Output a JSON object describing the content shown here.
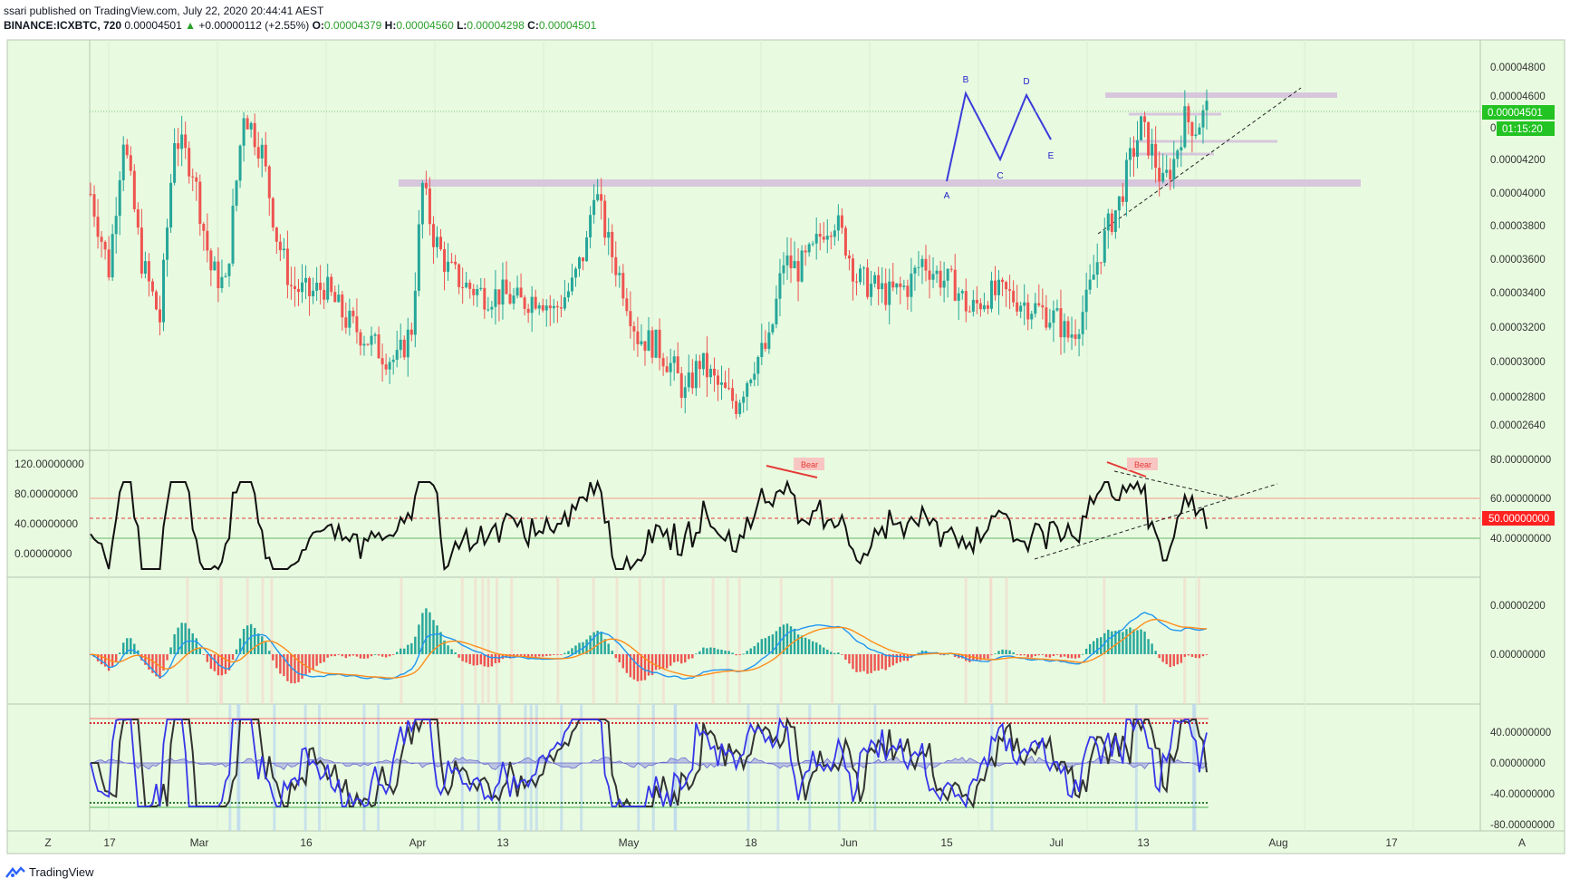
{
  "header": {
    "line1": "ssari published on TradingView.com, July 22, 2020 20:44:41 AEST",
    "symbol": "BINANCE:ICXBTC, 720",
    "last": "0.00004501",
    "change": "+0.00000112 (+2.55%)",
    "o_label": "O:",
    "o_value": "0.00004379",
    "h_label": "H:",
    "h_value": "0.00004560",
    "l_label": "L:",
    "l_value": "0.00004298",
    "c_label": "C:",
    "c_value": "0.00004501",
    "up_arrow": "▲"
  },
  "footer": {
    "brand": "TradingView"
  },
  "corners": {
    "left": "Z",
    "right": "A"
  },
  "colors": {
    "bg": "#e8fbe0",
    "up": "#26a69a",
    "down": "#ef5350",
    "band": "#d8c8dc",
    "pattern": "#3b3bdb"
  },
  "chart_data": {
    "type": "candlestick",
    "symbol": "BINANCE:ICXBTC",
    "interval": "720",
    "xaxis_ticks": [
      "17",
      "Mar",
      "16",
      "Apr",
      "13",
      "May",
      "18",
      "Jun",
      "15",
      "Jul",
      "13",
      "Aug",
      "17"
    ],
    "price_pane": {
      "y_ticks": [
        "0.00004800",
        "0.00004600",
        "0.00004400",
        "0.00004200",
        "0.00004000",
        "0.00003800",
        "0.00003600",
        "0.00003400",
        "0.00003200",
        "0.00003000",
        "0.00002800",
        "0.00002640"
      ],
      "y_tick_values": [
        4.8e-05,
        4.6e-05,
        4.4e-05,
        4.2e-05,
        4e-05,
        3.8e-05,
        3.6e-05,
        3.4e-05,
        3.2e-05,
        3e-05,
        2.8e-05,
        2.64e-05
      ],
      "last_price_label": "0.00004501",
      "countdown_label": "01:15:20",
      "hidden_tick": "0.",
      "path_points": [
        [
          0,
          4.0
        ],
        [
          5,
          3.55
        ],
        [
          9,
          4.35
        ],
        [
          14,
          3.6
        ],
        [
          19,
          3.25
        ],
        [
          23,
          4.35
        ],
        [
          28,
          4.15
        ],
        [
          33,
          3.55
        ],
        [
          37,
          3.45
        ],
        [
          42,
          4.5
        ],
        [
          47,
          4.25
        ],
        [
          51,
          3.75
        ],
        [
          55,
          3.45
        ],
        [
          60,
          3.4
        ],
        [
          64,
          3.45
        ],
        [
          70,
          3.25
        ],
        [
          75,
          3.15
        ],
        [
          80,
          3.05
        ],
        [
          84,
          3.0
        ],
        [
          88,
          3.2
        ],
        [
          91,
          4.05
        ],
        [
          94,
          3.75
        ],
        [
          98,
          3.55
        ],
        [
          103,
          3.45
        ],
        [
          108,
          3.4
        ],
        [
          113,
          3.4
        ],
        [
          118,
          3.35
        ],
        [
          123,
          3.4
        ],
        [
          127,
          3.3
        ],
        [
          132,
          3.45
        ],
        [
          136,
          3.7
        ],
        [
          138,
          4.05
        ],
        [
          142,
          3.7
        ],
        [
          146,
          3.45
        ],
        [
          150,
          3.15
        ],
        [
          155,
          3.1
        ],
        [
          160,
          2.95
        ],
        [
          163,
          2.8
        ],
        [
          167,
          3.0
        ],
        [
          172,
          2.85
        ],
        [
          177,
          2.75
        ],
        [
          182,
          3.0
        ],
        [
          186,
          3.1
        ],
        [
          190,
          3.6
        ],
        [
          194,
          3.55
        ],
        [
          198,
          3.65
        ],
        [
          201,
          3.8
        ],
        [
          204,
          3.85
        ],
        [
          207,
          3.7
        ],
        [
          210,
          3.5
        ],
        [
          214,
          3.45
        ],
        [
          219,
          3.4
        ],
        [
          224,
          3.45
        ],
        [
          228,
          3.6
        ],
        [
          233,
          3.5
        ],
        [
          237,
          3.45
        ],
        [
          241,
          3.3
        ],
        [
          246,
          3.4
        ],
        [
          251,
          3.4
        ],
        [
          256,
          3.35
        ],
        [
          261,
          3.3
        ],
        [
          265,
          3.25
        ],
        [
          268,
          3.15
        ],
        [
          270,
          3.2
        ],
        [
          273,
          3.35
        ],
        [
          276,
          3.6
        ],
        [
          279,
          3.8
        ],
        [
          282,
          3.95
        ],
        [
          285,
          4.2
        ],
        [
          288,
          4.4
        ],
        [
          291,
          4.25
        ],
        [
          294,
          4.05
        ],
        [
          297,
          4.2
        ],
        [
          300,
          4.45
        ],
        [
          303,
          4.4
        ],
        [
          306,
          4.5
        ]
      ],
      "horizontal_bands": [
        {
          "from": 4.05e-05,
          "to": 4.05e-05,
          "label": "support/resistance"
        },
        {
          "from": 4.6e-05,
          "to": 4.6e-05,
          "label": "top band"
        }
      ],
      "pattern_points": [
        {
          "label": "A",
          "price": 4.06e-05
        },
        {
          "label": "B",
          "price": 4.62e-05
        },
        {
          "label": "C",
          "price": 4.21e-05
        },
        {
          "label": "D",
          "price": 4.62e-05
        },
        {
          "label": "E",
          "price": 4.33e-05
        }
      ]
    },
    "rsi_pane": {
      "left_ticks": [
        "120.00000000",
        "80.00000000",
        "40.00000000",
        "0.00000000"
      ],
      "right_ticks": [
        "80.00000000",
        "60.00000000",
        "40.00000000"
      ],
      "level_label": "50.00000000",
      "annotations": [
        "Bear",
        "Bear"
      ]
    },
    "macd_pane": {
      "right_ticks": [
        "0.00000200",
        "0.00000000"
      ]
    },
    "osc_pane": {
      "right_ticks": [
        "40.00000000",
        "0.00000000",
        "-40.00000000",
        "-80.00000000"
      ]
    }
  }
}
